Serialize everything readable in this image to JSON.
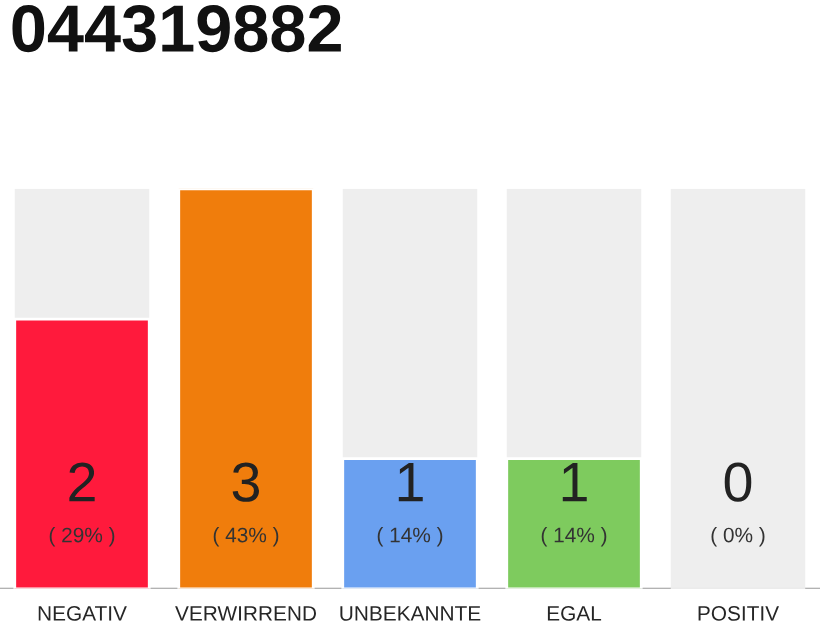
{
  "chart_data": {
    "type": "bar",
    "title": "044319882",
    "categories": [
      "NEGATIV",
      "VERWIRREND",
      "UNBEKANNTE",
      "EGAL",
      "POSITIV"
    ],
    "values": [
      29,
      43,
      14,
      14,
      0
    ],
    "colors": [
      "#ff1a3c",
      "#f07d0c",
      "#6aa0f0",
      "#7ecb5e",
      null
    ],
    "value_labels": [
      "( 29% )",
      "( 43% )",
      "( 14% )",
      "( 14% )",
      "( 0% )"
    ],
    "annotations": [
      "2",
      "3",
      "1",
      "1",
      "0"
    ],
    "tick_labels": "x"
  }
}
